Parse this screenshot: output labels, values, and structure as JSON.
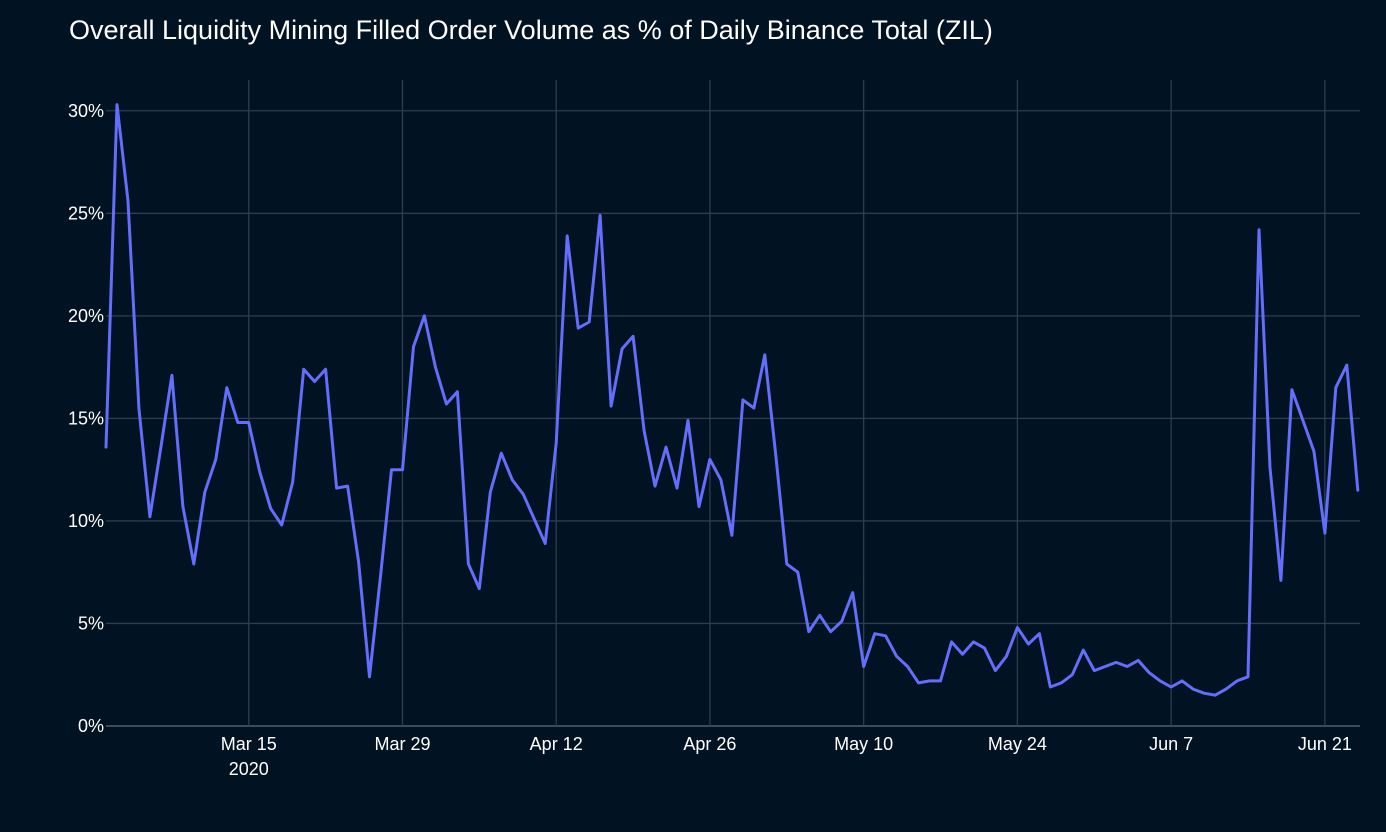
{
  "chart_data": {
    "type": "line",
    "title": "Overall Liquidity Mining Filled Order Volume as % of Daily Binance Total (ZIL)",
    "xlabel": "",
    "ylabel": "",
    "colors": {
      "background": "#011222",
      "grid": "#2f3d4e",
      "line": "#636efa",
      "text": "#ffffff"
    },
    "x_start": "2020-03-02",
    "x_range_days": [
      0,
      114.2
    ],
    "x_ticks": [
      {
        "day": 13,
        "label": "Mar 15",
        "sublabel": "2020"
      },
      {
        "day": 27,
        "label": "Mar 29",
        "sublabel": ""
      },
      {
        "day": 41,
        "label": "Apr 12",
        "sublabel": ""
      },
      {
        "day": 55,
        "label": "Apr 26",
        "sublabel": ""
      },
      {
        "day": 69,
        "label": "May 10",
        "sublabel": ""
      },
      {
        "day": 83,
        "label": "May 24",
        "sublabel": ""
      },
      {
        "day": 97,
        "label": "Jun 7",
        "sublabel": ""
      },
      {
        "day": 111,
        "label": "Jun 21",
        "sublabel": ""
      }
    ],
    "y_ticks": [
      {
        "value": 0,
        "label": "0%"
      },
      {
        "value": 5,
        "label": "5%"
      },
      {
        "value": 10,
        "label": "10%"
      },
      {
        "value": 15,
        "label": "15%"
      },
      {
        "value": 20,
        "label": "20%"
      },
      {
        "value": 25,
        "label": "25%"
      },
      {
        "value": 30,
        "label": "30%"
      }
    ],
    "ylim": [
      0,
      31.5
    ],
    "grid": true,
    "legend": "none",
    "series": [
      {
        "name": "Filled order volume %",
        "values": [
          13.6,
          30.3,
          25.6,
          15.5,
          10.2,
          13.6,
          17.1,
          10.7,
          7.9,
          11.4,
          13.0,
          16.5,
          14.8,
          14.8,
          12.4,
          10.6,
          9.8,
          11.9,
          17.4,
          16.8,
          17.4,
          11.6,
          11.7,
          8.0,
          2.4,
          7.3,
          12.5,
          12.5,
          18.5,
          20.0,
          17.5,
          15.7,
          16.3,
          7.9,
          6.7,
          11.4,
          13.3,
          12.0,
          11.3,
          10.1,
          8.9,
          13.8,
          23.9,
          19.4,
          19.7,
          24.9,
          15.6,
          18.4,
          19.0,
          14.4,
          11.7,
          13.6,
          11.6,
          14.9,
          10.7,
          13.0,
          12.0,
          9.3,
          15.9,
          15.5,
          18.1,
          13.2,
          7.9,
          7.5,
          4.6,
          5.4,
          4.6,
          5.1,
          6.5,
          2.9,
          4.5,
          4.4,
          3.4,
          2.9,
          2.1,
          2.2,
          2.2,
          4.1,
          3.5,
          4.1,
          3.8,
          2.7,
          3.4,
          4.8,
          4.0,
          4.5,
          1.9,
          2.1,
          2.5,
          3.7,
          2.7,
          2.9,
          3.1,
          2.9,
          3.2,
          2.6,
          2.2,
          1.9,
          2.2,
          1.8,
          1.6,
          1.5,
          1.8,
          2.2,
          2.4,
          24.2,
          12.6,
          7.1,
          16.4,
          14.9,
          13.4,
          9.4,
          16.5,
          17.6,
          11.5
        ]
      }
    ]
  }
}
